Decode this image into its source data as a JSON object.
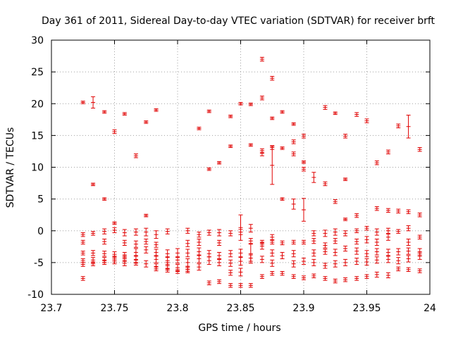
{
  "chart_data": {
    "type": "scatter",
    "title": "Day 361 of 2011, Sidereal Day-to-day VTEC variation (SDTVAR) for receiver brft",
    "xlabel": "GPS time / hours",
    "ylabel": "SDTVAR / TECUs",
    "xlim": [
      23.7,
      24.0
    ],
    "ylim": [
      -10,
      30
    ],
    "xticks": [
      23.7,
      23.75,
      23.8,
      23.85,
      23.9,
      23.95,
      24.0
    ],
    "xtick_labels": [
      "23.7",
      "23.75",
      "23.8",
      "23.85",
      "23.9",
      "23.95",
      "24"
    ],
    "yticks": [
      -10,
      -5,
      0,
      5,
      10,
      15,
      20,
      25,
      30
    ],
    "ytick_labels": [
      "-10",
      "-5",
      "0",
      "5",
      "10",
      "15",
      "20",
      "25",
      "30"
    ],
    "grid": true,
    "color": "#e00000",
    "marker": "errorbar",
    "points": [
      {
        "x": 23.725,
        "y": 20.2,
        "e": 0.2
      },
      {
        "x": 23.733,
        "y": 20.2,
        "e": 0.9
      },
      {
        "x": 23.742,
        "y": 18.7,
        "e": 0.2
      },
      {
        "x": 23.758,
        "y": 18.4,
        "e": 0.2
      },
      {
        "x": 23.783,
        "y": 19.0,
        "e": 0.2
      },
      {
        "x": 23.75,
        "y": 15.6,
        "e": 0.3
      },
      {
        "x": 23.775,
        "y": 17.1,
        "e": 0.2
      },
      {
        "x": 23.767,
        "y": 11.8,
        "e": 0.3
      },
      {
        "x": 23.817,
        "y": 16.1,
        "e": 0.2
      },
      {
        "x": 23.825,
        "y": 18.8,
        "e": 0.2
      },
      {
        "x": 23.842,
        "y": 18.0,
        "e": 0.2
      },
      {
        "x": 23.85,
        "y": 20.0,
        "e": 0.2
      },
      {
        "x": 23.858,
        "y": 19.9,
        "e": 0.2
      },
      {
        "x": 23.867,
        "y": 20.9,
        "e": 0.3
      },
      {
        "x": 23.867,
        "y": 27.0,
        "e": 0.3
      },
      {
        "x": 23.875,
        "y": 24.0,
        "e": 0.3
      },
      {
        "x": 23.875,
        "y": 17.7,
        "e": 0.2
      },
      {
        "x": 23.883,
        "y": 18.7,
        "e": 0.2
      },
      {
        "x": 23.892,
        "y": 16.8,
        "e": 0.2
      },
      {
        "x": 23.917,
        "y": 19.4,
        "e": 0.3
      },
      {
        "x": 23.925,
        "y": 18.5,
        "e": 0.2
      },
      {
        "x": 23.942,
        "y": 18.3,
        "e": 0.3
      },
      {
        "x": 23.95,
        "y": 17.3,
        "e": 0.3
      },
      {
        "x": 23.975,
        "y": 16.5,
        "e": 0.3
      },
      {
        "x": 23.983,
        "y": 16.4,
        "e": 1.8
      },
      {
        "x": 23.825,
        "y": 9.7,
        "e": 0.2
      },
      {
        "x": 23.833,
        "y": 10.7,
        "e": 0.2
      },
      {
        "x": 23.842,
        "y": 13.3,
        "e": 0.2
      },
      {
        "x": 23.858,
        "y": 13.5,
        "e": 0.2
      },
      {
        "x": 23.867,
        "y": 12.2,
        "e": 0.4
      },
      {
        "x": 23.867,
        "y": 12.6,
        "e": 0.3
      },
      {
        "x": 23.875,
        "y": 13.1,
        "e": 0.3
      },
      {
        "x": 23.875,
        "y": 10.3,
        "e": 3.0
      },
      {
        "x": 23.883,
        "y": 13.0,
        "e": 0.2
      },
      {
        "x": 23.892,
        "y": 14.0,
        "e": 0.3
      },
      {
        "x": 23.892,
        "y": 12.1,
        "e": 0.3
      },
      {
        "x": 23.9,
        "y": 14.9,
        "e": 0.3
      },
      {
        "x": 23.9,
        "y": 10.8,
        "e": 0.2
      },
      {
        "x": 23.9,
        "y": 9.7,
        "e": 0.3
      },
      {
        "x": 23.908,
        "y": 8.4,
        "e": 0.8
      },
      {
        "x": 23.917,
        "y": 7.4,
        "e": 0.3
      },
      {
        "x": 23.933,
        "y": 14.9,
        "e": 0.3
      },
      {
        "x": 23.933,
        "y": 8.1,
        "e": 0.2
      },
      {
        "x": 23.958,
        "y": 10.7,
        "e": 0.3
      },
      {
        "x": 23.967,
        "y": 12.4,
        "e": 0.3
      },
      {
        "x": 23.992,
        "y": 12.8,
        "e": 0.3
      },
      {
        "x": 23.733,
        "y": 7.3,
        "e": 0.2
      },
      {
        "x": 23.742,
        "y": 5.0,
        "e": 0.2
      },
      {
        "x": 23.883,
        "y": 5.0,
        "e": 0.2
      },
      {
        "x": 23.892,
        "y": 4.2,
        "e": 0.8
      },
      {
        "x": 23.9,
        "y": 3.3,
        "e": 1.8
      },
      {
        "x": 23.925,
        "y": 4.6,
        "e": 0.3
      },
      {
        "x": 23.933,
        "y": 1.8,
        "e": 0.2
      },
      {
        "x": 23.942,
        "y": 2.4,
        "e": 0.3
      },
      {
        "x": 23.958,
        "y": 3.5,
        "e": 0.3
      },
      {
        "x": 23.967,
        "y": 3.2,
        "e": 0.3
      },
      {
        "x": 23.975,
        "y": 3.1,
        "e": 0.3
      },
      {
        "x": 23.983,
        "y": 3.0,
        "e": 0.3
      },
      {
        "x": 23.992,
        "y": 2.5,
        "e": 0.3
      },
      {
        "x": 23.775,
        "y": 2.4,
        "e": 0.2
      },
      {
        "x": 23.75,
        "y": 1.2,
        "e": 0.2
      },
      {
        "x": 23.725,
        "y": -0.6,
        "e": 0.3
      },
      {
        "x": 23.733,
        "y": -0.4,
        "e": 0.3
      },
      {
        "x": 23.742,
        "y": -0.1,
        "e": 0.4
      },
      {
        "x": 23.75,
        "y": 0.1,
        "e": 0.4
      },
      {
        "x": 23.758,
        "y": -0.3,
        "e": 0.5
      },
      {
        "x": 23.767,
        "y": -0.2,
        "e": 0.5
      },
      {
        "x": 23.775,
        "y": -0.2,
        "e": 0.6
      },
      {
        "x": 23.783,
        "y": -0.6,
        "e": 0.6
      },
      {
        "x": 23.792,
        "y": -0.1,
        "e": 0.4
      },
      {
        "x": 23.808,
        "y": 0.0,
        "e": 0.4
      },
      {
        "x": 23.817,
        "y": -0.6,
        "e": 0.4
      },
      {
        "x": 23.825,
        "y": -0.3,
        "e": 0.4
      },
      {
        "x": 23.833,
        "y": -0.3,
        "e": 0.5
      },
      {
        "x": 23.842,
        "y": -0.4,
        "e": 0.4
      },
      {
        "x": 23.85,
        "y": -0.2,
        "e": 0.4
      },
      {
        "x": 23.858,
        "y": 0.4,
        "e": 0.6
      },
      {
        "x": 23.875,
        "y": -1.0,
        "e": 0.4
      },
      {
        "x": 23.908,
        "y": -0.4,
        "e": 0.4
      },
      {
        "x": 23.917,
        "y": -0.4,
        "e": 0.5
      },
      {
        "x": 23.925,
        "y": -0.2,
        "e": 0.5
      },
      {
        "x": 23.933,
        "y": -0.4,
        "e": 0.4
      },
      {
        "x": 23.942,
        "y": 0.0,
        "e": 0.3
      },
      {
        "x": 23.95,
        "y": 0.4,
        "e": 0.3
      },
      {
        "x": 23.958,
        "y": -0.2,
        "e": 0.5
      },
      {
        "x": 23.967,
        "y": 0.0,
        "e": 0.4
      },
      {
        "x": 23.975,
        "y": -0.1,
        "e": 0.3
      },
      {
        "x": 23.983,
        "y": 0.4,
        "e": 0.4
      },
      {
        "x": 23.992,
        "y": -1.0,
        "e": 0.3
      },
      {
        "x": 23.725,
        "y": -1.8,
        "e": 0.3
      },
      {
        "x": 23.742,
        "y": -1.7,
        "e": 0.4
      },
      {
        "x": 23.758,
        "y": -1.9,
        "e": 0.4
      },
      {
        "x": 23.767,
        "y": -2.1,
        "e": 0.5
      },
      {
        "x": 23.775,
        "y": -1.7,
        "e": 0.4
      },
      {
        "x": 23.783,
        "y": -2.2,
        "e": 0.4
      },
      {
        "x": 23.808,
        "y": -2.0,
        "e": 0.5
      },
      {
        "x": 23.817,
        "y": -1.8,
        "e": 0.5
      },
      {
        "x": 23.833,
        "y": -1.9,
        "e": 0.4
      },
      {
        "x": 23.858,
        "y": -1.6,
        "e": 0.4
      },
      {
        "x": 23.867,
        "y": -1.8,
        "e": 0.3
      },
      {
        "x": 23.875,
        "y": -1.8,
        "e": 0.3
      },
      {
        "x": 23.883,
        "y": -1.9,
        "e": 0.3
      },
      {
        "x": 23.892,
        "y": -1.8,
        "e": 0.3
      },
      {
        "x": 23.9,
        "y": -1.8,
        "e": 0.3
      },
      {
        "x": 23.908,
        "y": -1.6,
        "e": 0.4
      },
      {
        "x": 23.917,
        "y": -2.3,
        "e": 0.4
      },
      {
        "x": 23.925,
        "y": -1.6,
        "e": 0.4
      },
      {
        "x": 23.942,
        "y": -1.7,
        "e": 0.4
      },
      {
        "x": 23.95,
        "y": -1.4,
        "e": 0.5
      },
      {
        "x": 23.958,
        "y": -1.8,
        "e": 0.5
      },
      {
        "x": 23.967,
        "y": -1.0,
        "e": 0.5
      },
      {
        "x": 23.983,
        "y": -1.8,
        "e": 0.5
      },
      {
        "x": 23.725,
        "y": -3.5,
        "e": 0.3
      },
      {
        "x": 23.733,
        "y": -3.5,
        "e": 0.4
      },
      {
        "x": 23.742,
        "y": -3.6,
        "e": 0.4
      },
      {
        "x": 23.75,
        "y": -3.7,
        "e": 0.4
      },
      {
        "x": 23.758,
        "y": -3.8,
        "e": 0.4
      },
      {
        "x": 23.767,
        "y": -3.4,
        "e": 0.6
      },
      {
        "x": 23.775,
        "y": -3.0,
        "e": 0.5
      },
      {
        "x": 23.783,
        "y": -3.4,
        "e": 0.5
      },
      {
        "x": 23.792,
        "y": -3.6,
        "e": 0.6
      },
      {
        "x": 23.8,
        "y": -3.5,
        "e": 0.7
      },
      {
        "x": 23.808,
        "y": -3.5,
        "e": 0.6
      },
      {
        "x": 23.817,
        "y": -3.3,
        "e": 0.6
      },
      {
        "x": 23.825,
        "y": -3.6,
        "e": 0.5
      },
      {
        "x": 23.833,
        "y": -3.9,
        "e": 0.5
      },
      {
        "x": 23.842,
        "y": -3.6,
        "e": 0.5
      },
      {
        "x": 23.85,
        "y": -3.5,
        "e": 0.6
      },
      {
        "x": 23.875,
        "y": -3.5,
        "e": 0.5
      },
      {
        "x": 23.883,
        "y": -3.9,
        "e": 0.5
      },
      {
        "x": 23.892,
        "y": -3.6,
        "e": 0.5
      },
      {
        "x": 23.9,
        "y": -4.8,
        "e": 0.5
      },
      {
        "x": 23.908,
        "y": -3.5,
        "e": 0.5
      },
      {
        "x": 23.917,
        "y": -3.3,
        "e": 0.4
      },
      {
        "x": 23.925,
        "y": -3.4,
        "e": 0.5
      },
      {
        "x": 23.933,
        "y": -2.8,
        "e": 0.4
      },
      {
        "x": 23.942,
        "y": -3.2,
        "e": 0.5
      },
      {
        "x": 23.95,
        "y": -3.6,
        "e": 0.5
      },
      {
        "x": 23.958,
        "y": -3.3,
        "e": 0.5
      },
      {
        "x": 23.967,
        "y": -3.4,
        "e": 0.5
      },
      {
        "x": 23.975,
        "y": -3.3,
        "e": 0.5
      },
      {
        "x": 23.983,
        "y": -3.2,
        "e": 0.5
      },
      {
        "x": 23.992,
        "y": -3.3,
        "e": 0.5
      },
      {
        "x": 23.725,
        "y": -4.7,
        "e": 0.3
      },
      {
        "x": 23.733,
        "y": -4.6,
        "e": 0.4
      },
      {
        "x": 23.742,
        "y": -4.6,
        "e": 0.4
      },
      {
        "x": 23.75,
        "y": -4.3,
        "e": 0.3
      },
      {
        "x": 23.758,
        "y": -4.4,
        "e": 0.4
      },
      {
        "x": 23.767,
        "y": -4.5,
        "e": 0.6
      },
      {
        "x": 23.775,
        "y": -5.2,
        "e": 0.5
      },
      {
        "x": 23.783,
        "y": -4.5,
        "e": 0.5
      },
      {
        "x": 23.792,
        "y": -4.7,
        "e": 0.6
      },
      {
        "x": 23.8,
        "y": -4.6,
        "e": 0.5
      },
      {
        "x": 23.808,
        "y": -5.0,
        "e": 0.6
      },
      {
        "x": 23.817,
        "y": -4.4,
        "e": 0.6
      },
      {
        "x": 23.825,
        "y": -4.7,
        "e": 0.6
      },
      {
        "x": 23.833,
        "y": -5.0,
        "e": 0.5
      },
      {
        "x": 23.842,
        "y": -5.1,
        "e": 0.5
      },
      {
        "x": 23.85,
        "y": -4.8,
        "e": 0.6
      },
      {
        "x": 23.858,
        "y": -4.3,
        "e": 0.5
      },
      {
        "x": 23.867,
        "y": -4.5,
        "e": 0.5
      },
      {
        "x": 23.875,
        "y": -5.1,
        "e": 0.5
      },
      {
        "x": 23.892,
        "y": -5.2,
        "e": 0.5
      },
      {
        "x": 23.908,
        "y": -5.0,
        "e": 0.5
      },
      {
        "x": 23.917,
        "y": -5.5,
        "e": 0.4
      },
      {
        "x": 23.925,
        "y": -5.2,
        "e": 0.5
      },
      {
        "x": 23.933,
        "y": -5.0,
        "e": 0.5
      },
      {
        "x": 23.942,
        "y": -4.8,
        "e": 0.5
      },
      {
        "x": 23.95,
        "y": -4.9,
        "e": 0.5
      },
      {
        "x": 23.958,
        "y": -4.6,
        "e": 0.5
      },
      {
        "x": 23.967,
        "y": -4.5,
        "e": 0.5
      },
      {
        "x": 23.975,
        "y": -4.7,
        "e": 0.5
      },
      {
        "x": 23.983,
        "y": -4.4,
        "e": 0.5
      },
      {
        "x": 23.992,
        "y": -4.0,
        "e": 0.5
      },
      {
        "x": 23.725,
        "y": -5.3,
        "e": 0.3
      },
      {
        "x": 23.733,
        "y": -5.2,
        "e": 0.3
      },
      {
        "x": 23.742,
        "y": -5.0,
        "e": 0.3
      },
      {
        "x": 23.75,
        "y": -4.9,
        "e": 0.3
      },
      {
        "x": 23.758,
        "y": -5.1,
        "e": 0.4
      },
      {
        "x": 23.767,
        "y": -5.0,
        "e": 0.4
      },
      {
        "x": 23.783,
        "y": -5.6,
        "e": 0.4
      },
      {
        "x": 23.792,
        "y": -5.5,
        "e": 0.5
      },
      {
        "x": 23.8,
        "y": -5.8,
        "e": 0.5
      },
      {
        "x": 23.808,
        "y": -6.1,
        "e": 0.5
      },
      {
        "x": 23.817,
        "y": -5.7,
        "e": 0.5
      },
      {
        "x": 23.725,
        "y": -7.5,
        "e": 0.3
      },
      {
        "x": 23.783,
        "y": -6.0,
        "e": 0.3
      },
      {
        "x": 23.792,
        "y": -6.2,
        "e": 0.3
      },
      {
        "x": 23.8,
        "y": -6.4,
        "e": 0.3
      },
      {
        "x": 23.808,
        "y": -6.1,
        "e": 0.3
      },
      {
        "x": 23.825,
        "y": -8.2,
        "e": 0.3
      },
      {
        "x": 23.833,
        "y": -8.0,
        "e": 0.3
      },
      {
        "x": 23.842,
        "y": -6.6,
        "e": 0.4
      },
      {
        "x": 23.842,
        "y": -8.6,
        "e": 0.3
      },
      {
        "x": 23.85,
        "y": -6.5,
        "e": 0.6
      },
      {
        "x": 23.85,
        "y": -8.6,
        "e": 0.3
      },
      {
        "x": 23.858,
        "y": -8.6,
        "e": 0.3
      },
      {
        "x": 23.867,
        "y": -7.2,
        "e": 0.3
      },
      {
        "x": 23.875,
        "y": -6.7,
        "e": 0.3
      },
      {
        "x": 23.883,
        "y": -6.7,
        "e": 0.3
      },
      {
        "x": 23.892,
        "y": -7.2,
        "e": 0.3
      },
      {
        "x": 23.9,
        "y": -7.4,
        "e": 0.3
      },
      {
        "x": 23.908,
        "y": -7.1,
        "e": 0.3
      },
      {
        "x": 23.917,
        "y": -7.5,
        "e": 0.3
      },
      {
        "x": 23.925,
        "y": -7.9,
        "e": 0.3
      },
      {
        "x": 23.933,
        "y": -7.7,
        "e": 0.3
      },
      {
        "x": 23.942,
        "y": -7.5,
        "e": 0.3
      },
      {
        "x": 23.95,
        "y": -7.2,
        "e": 0.3
      },
      {
        "x": 23.958,
        "y": -6.9,
        "e": 0.4
      },
      {
        "x": 23.967,
        "y": -7.0,
        "e": 0.4
      },
      {
        "x": 23.975,
        "y": -6.0,
        "e": 0.3
      },
      {
        "x": 23.983,
        "y": -6.1,
        "e": 0.3
      },
      {
        "x": 23.992,
        "y": -6.3,
        "e": 0.3
      },
      {
        "x": 23.85,
        "y": 0.5,
        "e": 2.0
      },
      {
        "x": 23.858,
        "y": -3.6,
        "e": 1.5
      },
      {
        "x": 23.867,
        "y": -2.4,
        "e": 0.5
      }
    ]
  }
}
